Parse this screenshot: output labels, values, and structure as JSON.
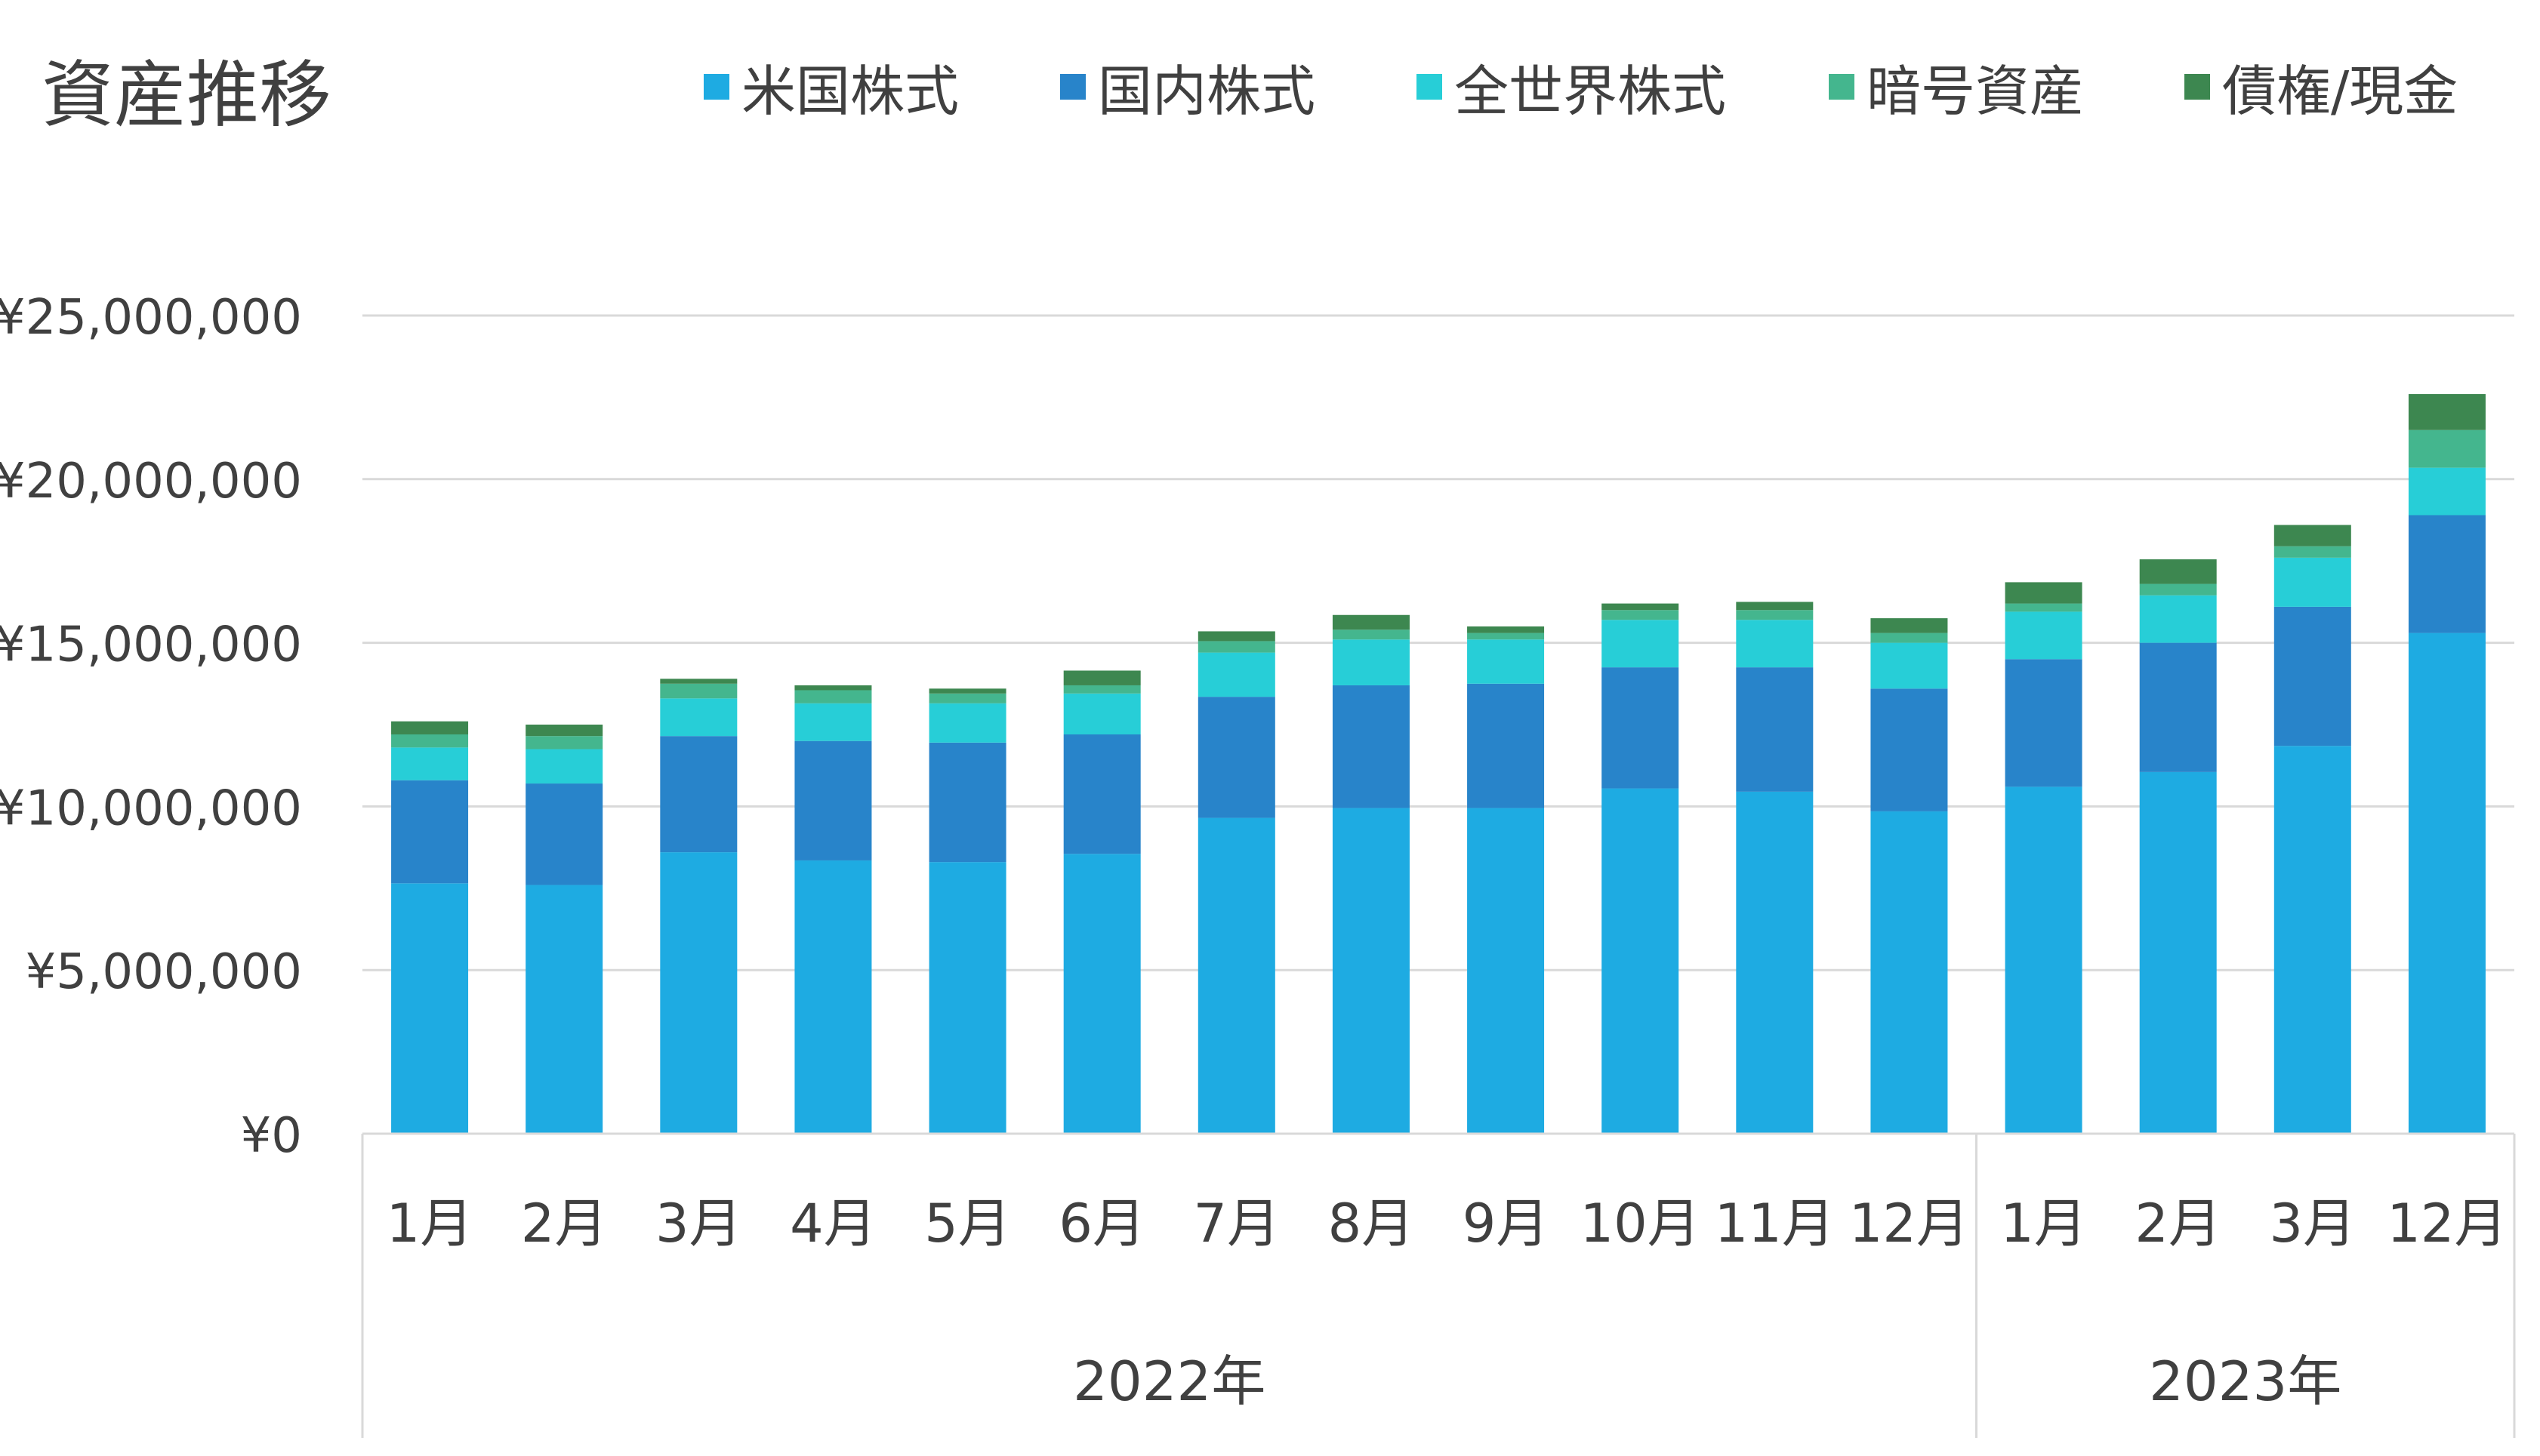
{
  "chart_data": {
    "type": "bar",
    "stacked": true,
    "title": "資産推移",
    "xlabel": "",
    "ylabel": "",
    "ylim": [
      0,
      25000000
    ],
    "yticks": [
      0,
      5000000,
      10000000,
      15000000,
      20000000,
      25000000
    ],
    "ytick_labels": [
      "¥0",
      "¥5,000,000",
      "¥10,000,000",
      "¥15,000,000",
      "¥20,000,000",
      "¥25,000,000"
    ],
    "grid": true,
    "legend_position": "top",
    "categories": [
      "1月",
      "2月",
      "3月",
      "4月",
      "5月",
      "6月",
      "7月",
      "8月",
      "9月",
      "10月",
      "11月",
      "12月",
      "1月",
      "2月",
      "3月",
      "12月"
    ],
    "groups": [
      {
        "label": "2022年",
        "count": 12
      },
      {
        "label": "2023年",
        "count": 4
      }
    ],
    "series": [
      {
        "name": "米国株式",
        "color": "#1EABE2",
        "values": [
          7650000,
          7600000,
          8600000,
          8350000,
          8300000,
          8550000,
          9650000,
          9950000,
          9950000,
          10550000,
          10450000,
          9850000,
          10600000,
          11050000,
          11850000,
          15300000
        ]
      },
      {
        "name": "国内株式",
        "color": "#2884CA",
        "values": [
          3150000,
          3100000,
          3550000,
          3650000,
          3650000,
          3650000,
          3700000,
          3750000,
          3800000,
          3700000,
          3800000,
          3750000,
          3900000,
          3950000,
          4250000,
          3600000
        ]
      },
      {
        "name": "全世界株式",
        "color": "#27CED7",
        "values": [
          1000000,
          1050000,
          1150000,
          1150000,
          1200000,
          1250000,
          1350000,
          1400000,
          1350000,
          1450000,
          1450000,
          1400000,
          1450000,
          1450000,
          1500000,
          1450000
        ]
      },
      {
        "name": "暗号資産",
        "color": "#44B68E",
        "values": [
          400000,
          400000,
          450000,
          400000,
          300000,
          250000,
          350000,
          300000,
          200000,
          300000,
          300000,
          300000,
          250000,
          350000,
          350000,
          1150000
        ]
      },
      {
        "name": "債権/現金",
        "color": "#3D8750",
        "values": [
          400000,
          350000,
          150000,
          150000,
          150000,
          450000,
          300000,
          450000,
          200000,
          200000,
          250000,
          450000,
          650000,
          750000,
          650000,
          1100000
        ]
      }
    ]
  }
}
